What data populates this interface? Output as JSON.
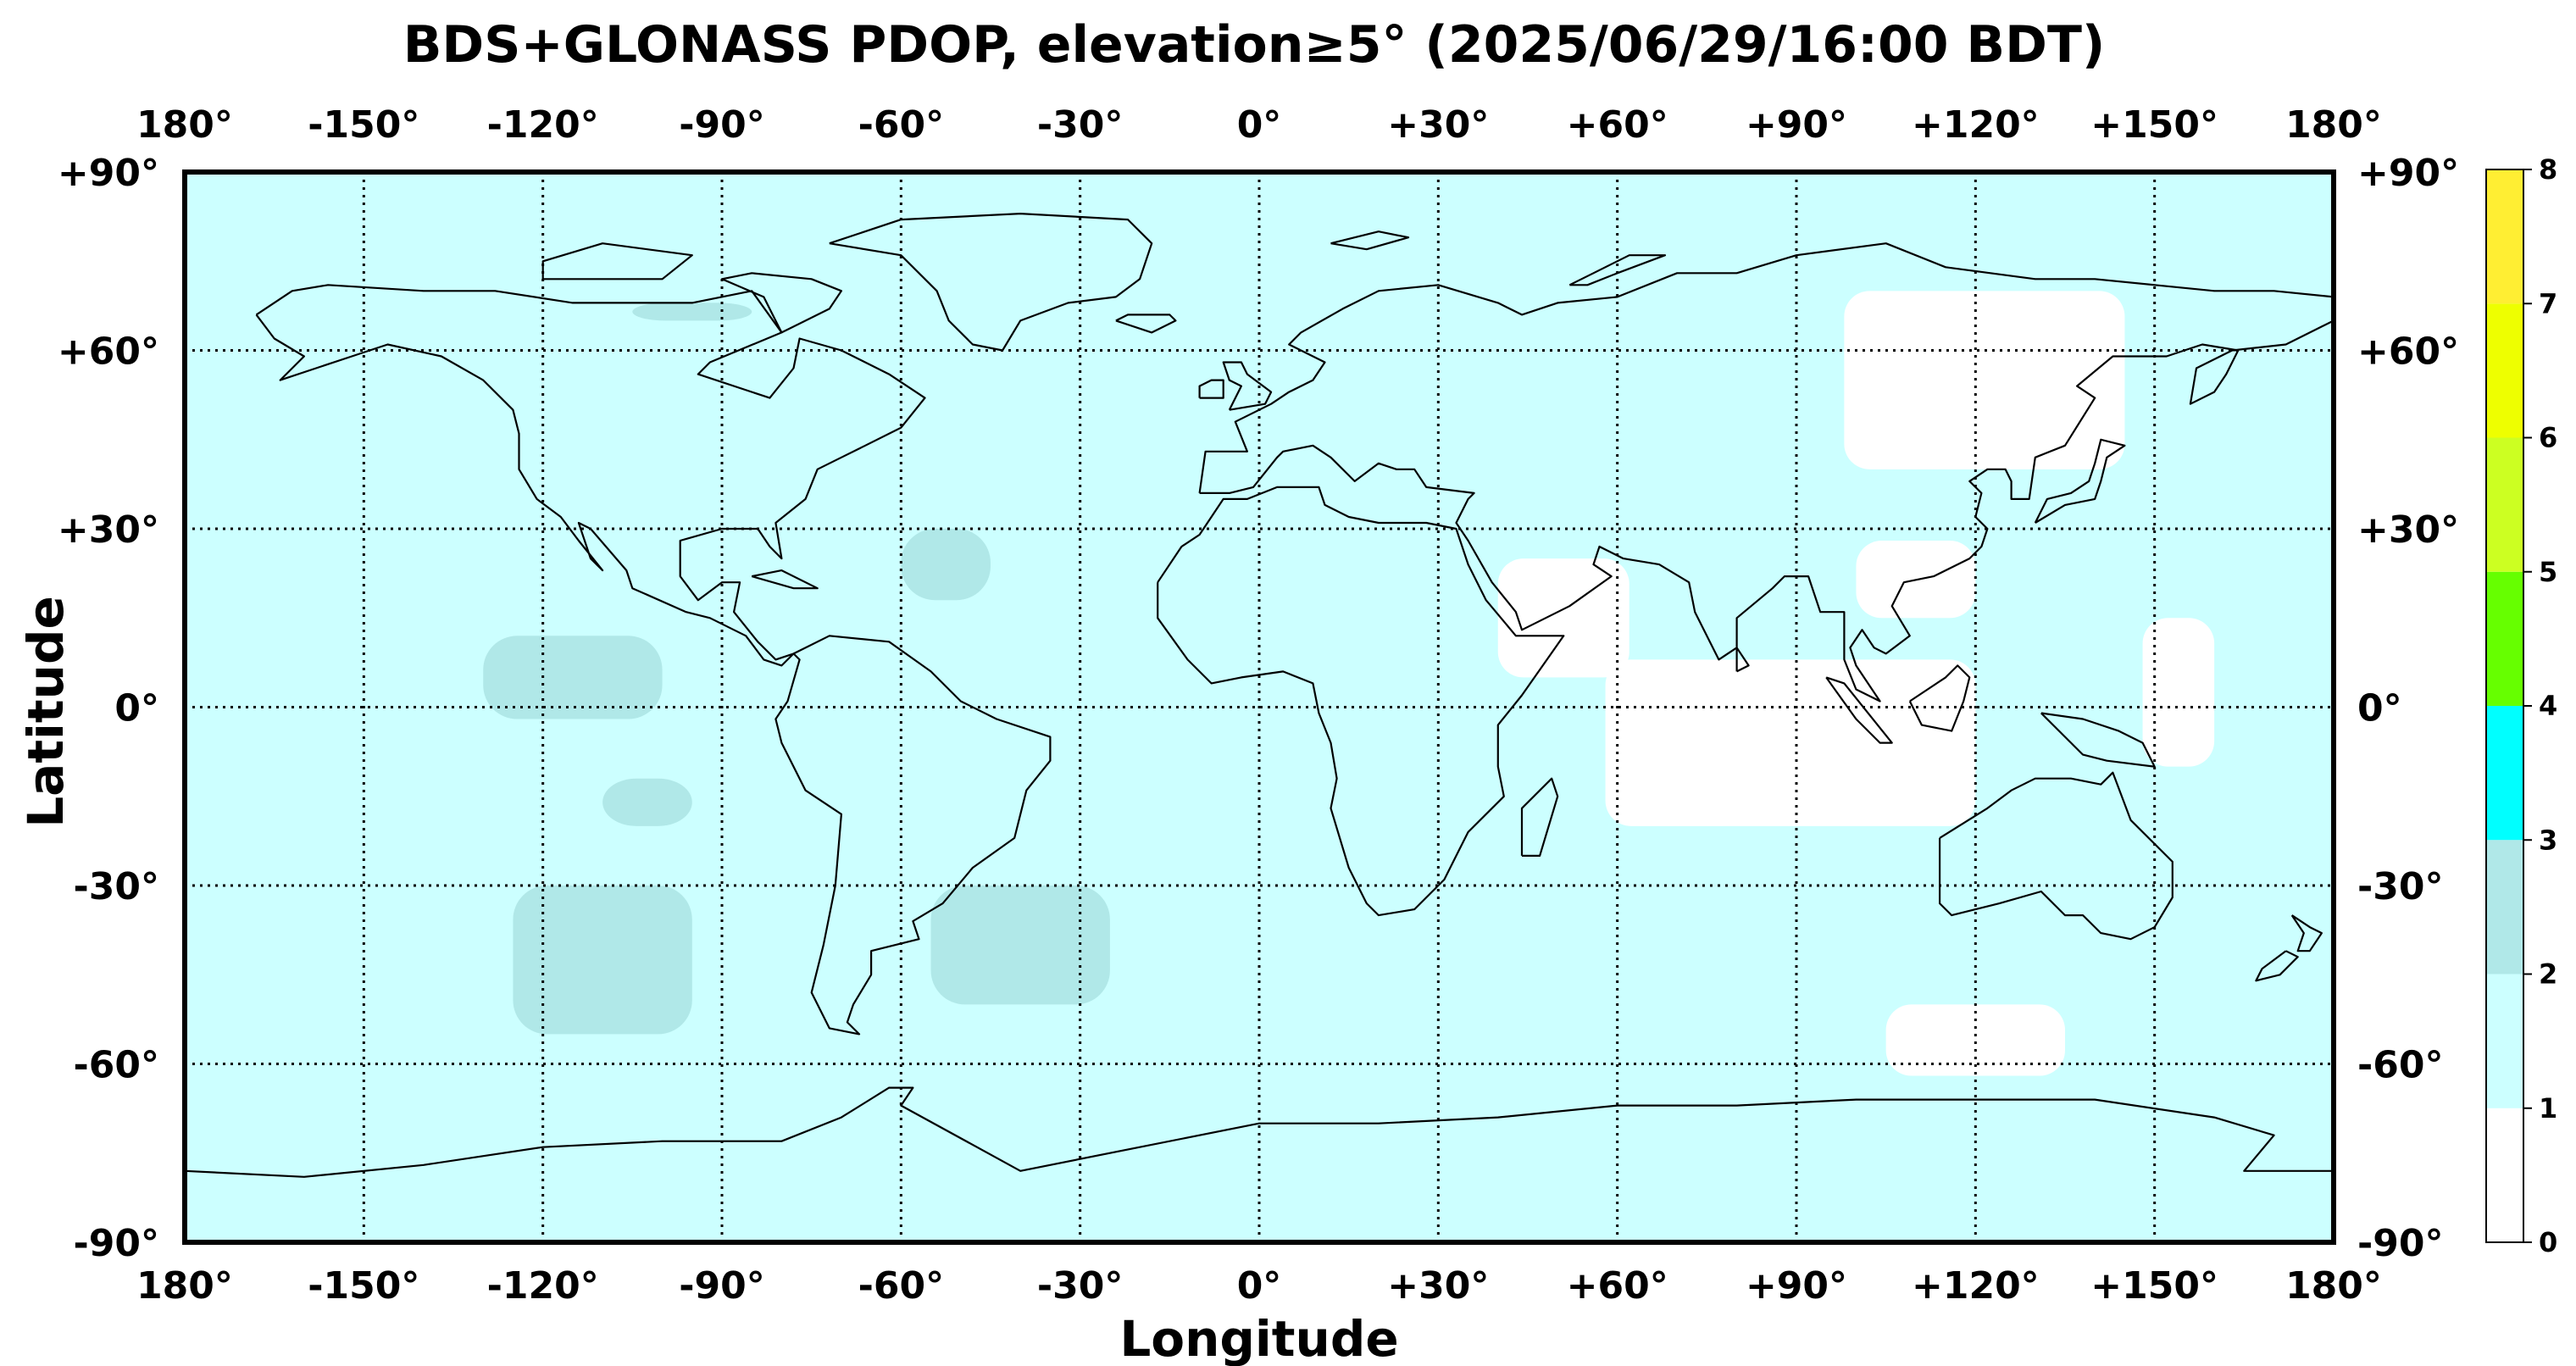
{
  "title": "BDS+GLONASS PDOP, elevation≥5° (2025/06/29/16:00 BDT)",
  "xlabel": "Longitude",
  "ylabel": "Latitude",
  "lon_ticks": [
    {
      "value": -180,
      "label": "180°"
    },
    {
      "value": -150,
      "label": "-150°"
    },
    {
      "value": -120,
      "label": "-120°"
    },
    {
      "value": -90,
      "label": "-90°"
    },
    {
      "value": -60,
      "label": "-60°"
    },
    {
      "value": -30,
      "label": "-30°"
    },
    {
      "value": 0,
      "label": "0°"
    },
    {
      "value": 30,
      "label": "+30°"
    },
    {
      "value": 60,
      "label": "+60°"
    },
    {
      "value": 90,
      "label": "+90°"
    },
    {
      "value": 120,
      "label": "+120°"
    },
    {
      "value": 150,
      "label": "+150°"
    },
    {
      "value": 180,
      "label": "180°"
    }
  ],
  "lat_ticks": [
    {
      "value": 90,
      "label": "+90°"
    },
    {
      "value": 60,
      "label": "+60°"
    },
    {
      "value": 30,
      "label": "+30°"
    },
    {
      "value": 0,
      "label": "0°"
    },
    {
      "value": -30,
      "label": "-30°"
    },
    {
      "value": -60,
      "label": "-60°"
    },
    {
      "value": -90,
      "label": "-90°"
    }
  ],
  "colorbar": {
    "range": [
      0,
      8
    ],
    "bands": [
      {
        "from": 0,
        "to": 1,
        "color": "#ffffff"
      },
      {
        "from": 1,
        "to": 2,
        "color": "#ccffff"
      },
      {
        "from": 2,
        "to": 3,
        "color": "#b0e8e8"
      },
      {
        "from": 3,
        "to": 4,
        "color": "#00ffff"
      },
      {
        "from": 4,
        "to": 5,
        "color": "#66ff00"
      },
      {
        "from": 5,
        "to": 6,
        "color": "#ccff22"
      },
      {
        "from": 6,
        "to": 7,
        "color": "#eeff00"
      },
      {
        "from": 7,
        "to": 8,
        "color": "#ffee33"
      }
    ],
    "tick_labels": [
      "0",
      "1",
      "2",
      "3",
      "4",
      "5",
      "6",
      "7",
      "8"
    ]
  },
  "pdop_field": {
    "background_class_color": "#ccffff",
    "low_regions_color": "#ffffff",
    "high_regions_color": "#b0e8e8",
    "low_regions": [
      {
        "lon": [
          98,
          145
        ],
        "lat": [
          40,
          70
        ]
      },
      {
        "lon": [
          40,
          62
        ],
        "lat": [
          5,
          25
        ]
      },
      {
        "lon": [
          58,
          120
        ],
        "lat": [
          -20,
          8
        ]
      },
      {
        "lon": [
          100,
          120
        ],
        "lat": [
          15,
          28
        ]
      },
      {
        "lon": [
          148,
          160
        ],
        "lat": [
          -10,
          15
        ]
      },
      {
        "lon": [
          105,
          135
        ],
        "lat": [
          -50,
          -62
        ]
      }
    ],
    "high_regions": [
      {
        "lon": [
          -110,
          -95
        ],
        "lat": [
          -12,
          -20
        ]
      },
      {
        "lon": [
          -125,
          -95
        ],
        "lat": [
          -30,
          -55
        ]
      },
      {
        "lon": [
          -130,
          -100
        ],
        "lat": [
          -2,
          12
        ]
      },
      {
        "lon": [
          -55,
          -25
        ],
        "lat": [
          -30,
          -50
        ]
      },
      {
        "lon": [
          -60,
          -45
        ],
        "lat": [
          18,
          30
        ]
      },
      {
        "lon": [
          -105,
          -85
        ],
        "lat": [
          65,
          68
        ]
      }
    ]
  },
  "coastline_color": "#000000",
  "grid": true
}
